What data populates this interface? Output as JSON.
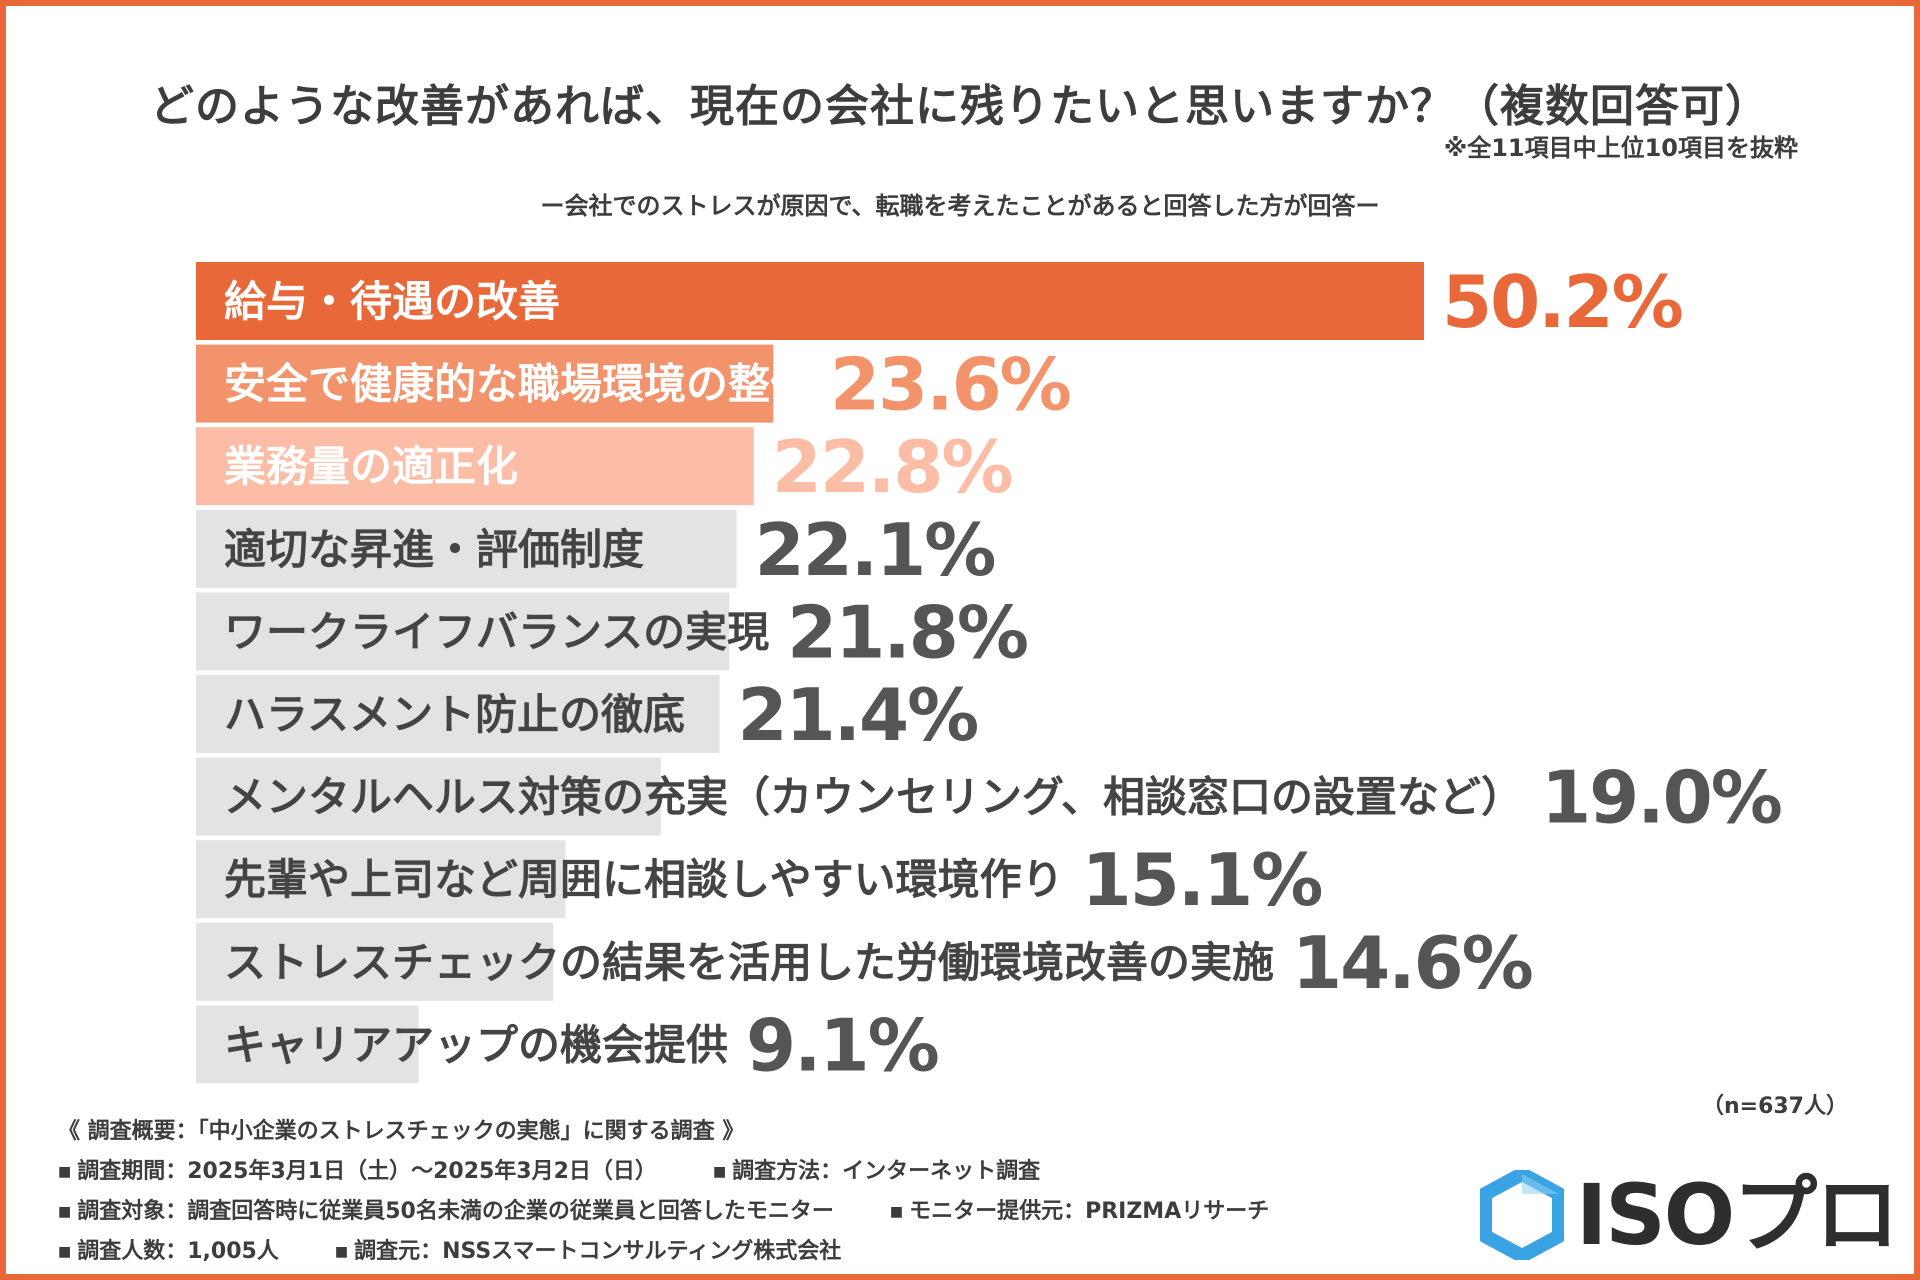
{
  "header": {
    "title": "どのような改善があれば、現在の会社に残りたいと思いますか？（複数回答可）",
    "note": "※全11項目中上位10項目を抜粋",
    "subtitle": "ー会社でのストレスが原因で、転職を考えたことがあると回答した方が回答ー"
  },
  "chart_data": {
    "type": "bar",
    "orientation": "horizontal",
    "title": "どのような改善があれば、現在の会社に残りたいと思いますか？（複数回答可）",
    "unit": "%",
    "categories": [
      "給与・待遇の改善",
      "安全で健康的な職場環境の整備",
      "業務量の適正化",
      "適切な昇進・評価制度",
      "ワークライフバランスの実現",
      "ハラスメント防止の徹底",
      "メンタルヘルス対策の充実（カウンセリング、相談窓口の設置など）",
      "先輩や上司など周囲に相談しやすい環境作り",
      "ストレスチェックの結果を活用した労働環境改善の実施",
      "キャリアアップの機会提供"
    ],
    "values": [
      50.2,
      23.6,
      22.8,
      22.1,
      21.8,
      21.4,
      19.0,
      15.1,
      14.6,
      9.1
    ],
    "value_labels": [
      "50.2%",
      "23.6%",
      "22.8%",
      "22.1%",
      "21.8%",
      "21.4%",
      "19.0%",
      "15.1%",
      "14.6%",
      "9.1%"
    ],
    "xlim": [
      0,
      50.2
    ],
    "colors": {
      "rank1": "#e8683a",
      "rank2": "#f3936c",
      "rank3": "#fbbda5",
      "other": "#e3e3e3",
      "label_light": "#ffffff",
      "label_dark": "#444444",
      "value_dark": "#555555"
    }
  },
  "sample": "（n=637人）",
  "survey": {
    "heading": "《 調査概要：「中小企業のストレスチェックの実態」に関する調査 》",
    "period": "調査期間：2025年3月1日（土）～2025年3月2日（日）",
    "method": "調査方法：インターネット調査",
    "target": "調査対象：調査回答時に従業員50名未満の企業の従業員と回答したモニター",
    "provider": "モニター提供元：PRIZMAリサーチ",
    "count": "調査人数：1,005人",
    "organizer": "調査元：NSSスマートコンサルティング株式会社"
  },
  "logo": {
    "text": "ISOプロ",
    "icon": "hexagon-logo-icon",
    "color": "#3aa3e3"
  }
}
